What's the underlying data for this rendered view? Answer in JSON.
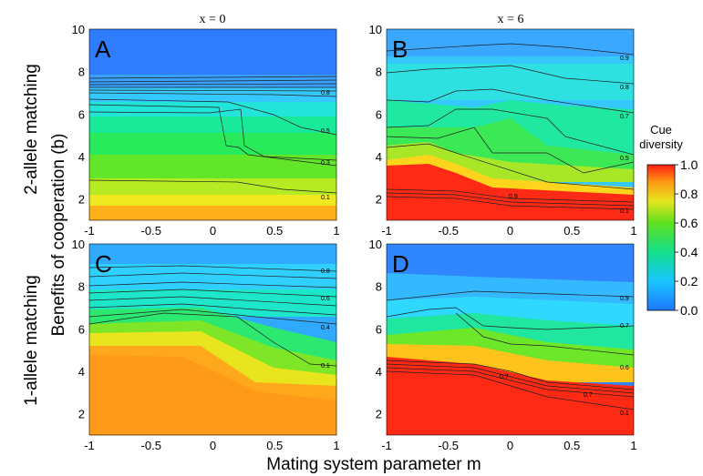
{
  "figure": {
    "column_titles": [
      "x = 0",
      "x = 6"
    ],
    "row_titles": [
      "2-allele matching",
      "1-allele matching"
    ],
    "xlabel": "Mating system parameter m",
    "ylabel": "Benefits of cooperation (b)",
    "colorbar_title_line1": "Cue",
    "colorbar_title_line2": "diversity",
    "colorbar_ticks": [
      "1.0",
      "0.8",
      "0.6",
      "0.4",
      "0.2",
      "0.0"
    ]
  },
  "chart_data": [
    {
      "type": "heatmap",
      "panel": "A",
      "title": "x = 0",
      "xlabel": "Mating system parameter m",
      "ylabel": "Benefits of cooperation (b)",
      "x": [
        -1,
        -0.5,
        0,
        0.5,
        1
      ],
      "y": [
        1,
        2,
        4,
        6,
        8,
        10
      ],
      "xlim": [
        -1,
        1
      ],
      "ylim": [
        1,
        10
      ],
      "x_ticks": [
        "-1",
        "-0.5",
        "0",
        "0.5",
        "1"
      ],
      "y_ticks": [
        "2",
        "4",
        "6",
        "8",
        "10"
      ],
      "z": [
        [
          0.9,
          0.88,
          0.85,
          0.83,
          0.82
        ],
        [
          0.72,
          0.72,
          0.71,
          0.7,
          0.7
        ],
        [
          0.52,
          0.52,
          0.5,
          0.5,
          0.49
        ],
        [
          0.4,
          0.4,
          0.4,
          0.38,
          0.36
        ],
        [
          0.14,
          0.14,
          0.14,
          0.14,
          0.14
        ],
        [
          0.1,
          0.1,
          0.1,
          0.1,
          0.1
        ]
      ],
      "contour_labels": [
        "0.8",
        "0.5",
        "0.3",
        "0.1"
      ]
    },
    {
      "type": "heatmap",
      "panel": "B",
      "title": "x = 6",
      "xlabel": "Mating system parameter m",
      "ylabel": "Benefits of cooperation (b)",
      "x": [
        -1,
        -0.5,
        0,
        0.5,
        1
      ],
      "y": [
        1,
        2,
        4,
        6,
        8,
        10
      ],
      "xlim": [
        -1,
        1
      ],
      "ylim": [
        1,
        10
      ],
      "x_ticks": [
        "-1",
        "-0.5",
        "0",
        "0.5",
        "1"
      ],
      "y_ticks": [
        "2",
        "4",
        "6",
        "8",
        "10"
      ],
      "z": [
        [
          1.0,
          1.0,
          1.0,
          1.0,
          1.0
        ],
        [
          1.0,
          0.98,
          0.96,
          0.96,
          0.96
        ],
        [
          0.96,
          0.9,
          0.62,
          0.58,
          0.55
        ],
        [
          0.56,
          0.45,
          0.4,
          0.42,
          0.38
        ],
        [
          0.3,
          0.25,
          0.18,
          0.2,
          0.22
        ],
        [
          0.2,
          0.18,
          0.14,
          0.15,
          0.16
        ]
      ],
      "contour_labels": [
        "0.9",
        "0.8",
        "0.7",
        "0.5",
        "0.9",
        "0.1"
      ]
    },
    {
      "type": "heatmap",
      "panel": "C",
      "xlabel": "Mating system parameter m",
      "ylabel": "Benefits of cooperation (b)",
      "x": [
        -1,
        -0.5,
        0,
        0.5,
        1
      ],
      "y": [
        1,
        2,
        4,
        6,
        8,
        10
      ],
      "xlim": [
        -1,
        1
      ],
      "ylim": [
        1,
        10
      ],
      "x_ticks": [
        "-1",
        "-0.5",
        "0",
        "0.5",
        "1"
      ],
      "y_ticks": [
        "2",
        "4",
        "6",
        "8",
        "10"
      ],
      "z": [
        [
          0.85,
          0.86,
          0.86,
          0.84,
          0.84
        ],
        [
          0.86,
          0.88,
          0.87,
          0.82,
          0.84
        ],
        [
          0.85,
          0.88,
          0.84,
          0.52,
          0.55
        ],
        [
          0.58,
          0.5,
          0.5,
          0.42,
          0.4
        ],
        [
          0.3,
          0.28,
          0.27,
          0.26,
          0.26
        ],
        [
          0.18,
          0.17,
          0.16,
          0.16,
          0.16
        ]
      ],
      "contour_labels": [
        "0.8",
        "0.6",
        "0.4",
        "0.1"
      ]
    },
    {
      "type": "heatmap",
      "panel": "D",
      "xlabel": "Mating system parameter m",
      "ylabel": "Benefits of cooperation (b)",
      "x": [
        -1,
        -0.5,
        0,
        0.5,
        1
      ],
      "y": [
        1,
        2,
        4,
        6,
        8,
        10
      ],
      "xlim": [
        -1,
        1
      ],
      "ylim": [
        1,
        10
      ],
      "x_ticks": [
        "-1",
        "-0.5",
        "0",
        "0.5",
        "1"
      ],
      "y_ticks": [
        "2",
        "4",
        "6",
        "8",
        "10"
      ],
      "z": [
        [
          1.0,
          1.0,
          1.0,
          1.0,
          1.0
        ],
        [
          1.0,
          1.0,
          1.0,
          1.0,
          1.0
        ],
        [
          1.0,
          0.98,
          0.96,
          0.62,
          0.58
        ],
        [
          0.72,
          0.6,
          0.48,
          0.44,
          0.4
        ],
        [
          0.32,
          0.24,
          0.16,
          0.18,
          0.18
        ],
        [
          0.16,
          0.12,
          0.1,
          0.1,
          0.1
        ]
      ],
      "contour_labels": [
        "0.9",
        "0.7",
        "0.6",
        "0.7",
        "0.7",
        "0.1"
      ]
    }
  ]
}
